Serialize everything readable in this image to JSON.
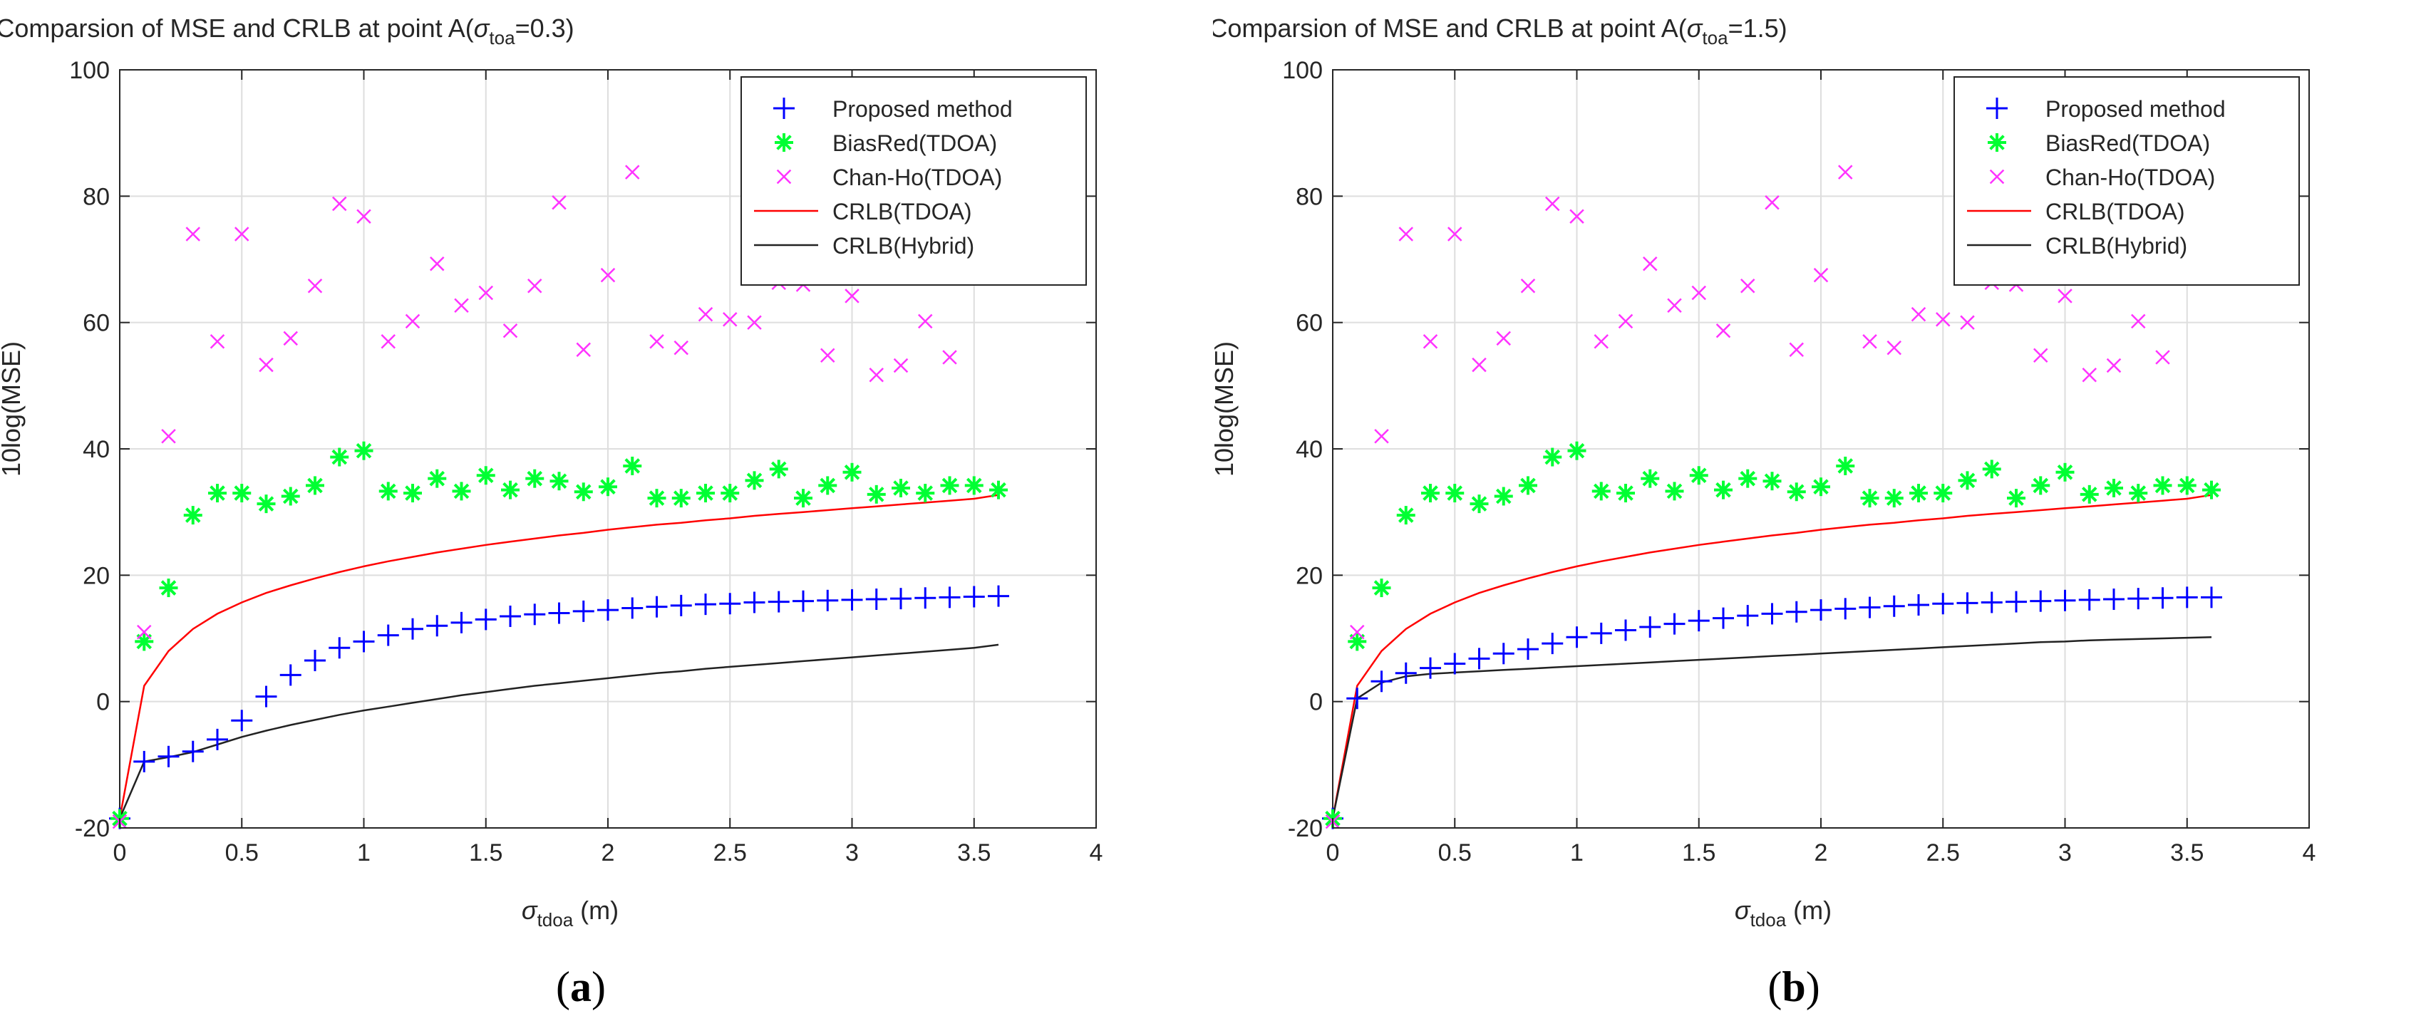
{
  "chart_data": [
    {
      "type": "scatter",
      "panel_label": "(a)",
      "panel_letter": "a",
      "title": "Comparsion of MSE and CRLB at point A(σtoa=0.3)",
      "title_prefix": "Comparsion of MSE and CRLB at point A(",
      "title_sigma": "σ",
      "title_sub": "toa",
      "title_suffix": "=0.3)",
      "xlabel": "σtdoa (m)",
      "xlabel_sigma": "σ",
      "xlabel_sub": "tdoa",
      "xlabel_suffix": " (m)",
      "ylabel": "10log(MSE)",
      "xlim": [
        0,
        4
      ],
      "ylim": [
        -20,
        100
      ],
      "xticks": [
        0,
        0.5,
        1,
        1.5,
        2,
        2.5,
        3,
        3.5,
        4
      ],
      "xtick_labels": [
        "0",
        "0.5",
        "1",
        "1.5",
        "2",
        "2.5",
        "3",
        "3.5",
        "4"
      ],
      "yticks": [
        -20,
        0,
        20,
        40,
        60,
        80,
        100
      ],
      "ytick_labels": [
        "-20",
        "0",
        "20",
        "40",
        "60",
        "80",
        "100"
      ],
      "grid": true,
      "legend_position": "top-right",
      "x": [
        0,
        0.1,
        0.2,
        0.3,
        0.4,
        0.5,
        0.6,
        0.7,
        0.8,
        0.9,
        1.0,
        1.1,
        1.2,
        1.3,
        1.4,
        1.5,
        1.6,
        1.7,
        1.8,
        1.9,
        2.0,
        2.1,
        2.2,
        2.3,
        2.4,
        2.5,
        2.6,
        2.7,
        2.8,
        2.9,
        3.0,
        3.1,
        3.2,
        3.3,
        3.4,
        3.5,
        3.6
      ],
      "series": [
        {
          "name": "Proposed method",
          "kind": "plus",
          "color": "#0000ff",
          "values": [
            -18.5,
            -9.5,
            -8.7,
            -7.9,
            -6.0,
            -3.0,
            0.8,
            4.2,
            6.5,
            8.5,
            9.5,
            10.5,
            11.5,
            12.0,
            12.5,
            13.0,
            13.5,
            13.8,
            14.0,
            14.3,
            14.5,
            14.8,
            15.0,
            15.2,
            15.4,
            15.5,
            15.7,
            15.8,
            15.9,
            16.0,
            16.1,
            16.2,
            16.3,
            16.4,
            16.5,
            16.6,
            16.7
          ]
        },
        {
          "name": "BiasRed(TDOA)",
          "kind": "asterisk",
          "color": "#00ff33",
          "values": [
            -18.5,
            9.5,
            18.0,
            29.5,
            33.0,
            33.0,
            31.3,
            32.5,
            34.2,
            38.7,
            39.7,
            33.3,
            33.0,
            35.3,
            33.3,
            35.8,
            33.5,
            35.3,
            34.9,
            33.2,
            34.0,
            37.3,
            32.2,
            32.2,
            33.0,
            33.0,
            35.0,
            36.8,
            32.2,
            34.2,
            36.3,
            32.8,
            33.8,
            33.0,
            34.2,
            34.2,
            33.5
          ]
        },
        {
          "name": "Chan-Ho(TDOA)",
          "kind": "x",
          "color": "#ff33ff",
          "values": [
            -19.0,
            11.0,
            42.0,
            74.0,
            57.0,
            74.0,
            53.3,
            57.5,
            65.8,
            78.8,
            76.8,
            57.0,
            60.2,
            69.3,
            62.7,
            64.7,
            58.7,
            65.8,
            79.0,
            55.7,
            67.5,
            83.8,
            57.0,
            56.0,
            61.3,
            60.5,
            60.0,
            66.3,
            66.0,
            54.8,
            64.2,
            51.7,
            53.2,
            60.2,
            54.5,
            null,
            null
          ]
        },
        {
          "name": "CRLB(TDOA)",
          "kind": "line",
          "color": "#ff0000",
          "values": [
            -18.5,
            2.5,
            8.0,
            11.5,
            13.9,
            15.7,
            17.2,
            18.4,
            19.5,
            20.5,
            21.4,
            22.2,
            22.9,
            23.6,
            24.2,
            24.8,
            25.3,
            25.8,
            26.3,
            26.7,
            27.2,
            27.6,
            28.0,
            28.3,
            28.7,
            29.0,
            29.4,
            29.7,
            30.0,
            30.3,
            30.6,
            30.9,
            31.2,
            31.5,
            31.8,
            32.1,
            32.7
          ]
        },
        {
          "name": "CRLB(Hybrid)",
          "kind": "line",
          "color": "#222222",
          "values": [
            -18.5,
            -9.5,
            -8.8,
            -8.0,
            -6.8,
            -5.6,
            -4.6,
            -3.7,
            -2.9,
            -2.1,
            -1.4,
            -0.8,
            -0.2,
            0.4,
            1.0,
            1.5,
            2.0,
            2.5,
            2.9,
            3.3,
            3.7,
            4.1,
            4.5,
            4.8,
            5.2,
            5.5,
            5.8,
            6.1,
            6.4,
            6.7,
            7.0,
            7.3,
            7.6,
            7.9,
            8.2,
            8.5,
            9.0
          ]
        }
      ]
    },
    {
      "type": "scatter",
      "panel_label": "(b)",
      "panel_letter": "b",
      "title": "Comparsion of MSE and CRLB at point A(σtoa=1.5)",
      "title_prefix": "Comparsion of MSE and CRLB at point A(",
      "title_sigma": "σ",
      "title_sub": "toa",
      "title_suffix": "=1.5)",
      "xlabel": "σtdoa (m)",
      "xlabel_sigma": "σ",
      "xlabel_sub": "tdoa",
      "xlabel_suffix": " (m)",
      "ylabel": "10log(MSE)",
      "xlim": [
        0,
        4
      ],
      "ylim": [
        -20,
        100
      ],
      "xticks": [
        0,
        0.5,
        1,
        1.5,
        2,
        2.5,
        3,
        3.5,
        4
      ],
      "xtick_labels": [
        "0",
        "0.5",
        "1",
        "1.5",
        "2",
        "2.5",
        "3",
        "3.5",
        "4"
      ],
      "yticks": [
        -20,
        0,
        20,
        40,
        60,
        80,
        100
      ],
      "ytick_labels": [
        "-20",
        "0",
        "20",
        "40",
        "60",
        "80",
        "100"
      ],
      "grid": true,
      "legend_position": "top-right",
      "x": [
        0,
        0.1,
        0.2,
        0.3,
        0.4,
        0.5,
        0.6,
        0.7,
        0.8,
        0.9,
        1.0,
        1.1,
        1.2,
        1.3,
        1.4,
        1.5,
        1.6,
        1.7,
        1.8,
        1.9,
        2.0,
        2.1,
        2.2,
        2.3,
        2.4,
        2.5,
        2.6,
        2.7,
        2.8,
        2.9,
        3.0,
        3.1,
        3.2,
        3.3,
        3.4,
        3.5,
        3.6
      ],
      "series": [
        {
          "name": "Proposed method",
          "kind": "plus",
          "color": "#0000ff",
          "values": [
            -18.5,
            0.5,
            3.2,
            4.5,
            5.3,
            6.0,
            6.8,
            7.6,
            8.3,
            9.2,
            10.2,
            10.8,
            11.3,
            11.8,
            12.3,
            12.8,
            13.2,
            13.6,
            13.9,
            14.2,
            14.5,
            14.7,
            14.9,
            15.1,
            15.3,
            15.5,
            15.6,
            15.7,
            15.8,
            15.9,
            16.0,
            16.1,
            16.2,
            16.3,
            16.4,
            16.5,
            16.5
          ]
        },
        {
          "name": "BiasRed(TDOA)",
          "kind": "asterisk",
          "color": "#00ff33",
          "values": [
            -18.5,
            9.5,
            18.0,
            29.5,
            33.0,
            33.0,
            31.3,
            32.5,
            34.2,
            38.7,
            39.7,
            33.3,
            33.0,
            35.3,
            33.3,
            35.8,
            33.5,
            35.3,
            34.9,
            33.2,
            34.0,
            37.3,
            32.2,
            32.2,
            33.0,
            33.0,
            35.0,
            36.8,
            32.2,
            34.2,
            36.3,
            32.8,
            33.8,
            33.0,
            34.2,
            34.2,
            33.5
          ]
        },
        {
          "name": "Chan-Ho(TDOA)",
          "kind": "x",
          "color": "#ff33ff",
          "values": [
            -19.0,
            11.0,
            42.0,
            74.0,
            57.0,
            74.0,
            53.3,
            57.5,
            65.8,
            78.8,
            76.8,
            57.0,
            60.2,
            69.3,
            62.7,
            64.7,
            58.7,
            65.8,
            79.0,
            55.7,
            67.5,
            83.8,
            57.0,
            56.0,
            61.3,
            60.5,
            60.0,
            66.3,
            66.0,
            54.8,
            64.2,
            51.7,
            53.2,
            60.2,
            54.5,
            null,
            null
          ]
        },
        {
          "name": "CRLB(TDOA)",
          "kind": "line",
          "color": "#ff0000",
          "values": [
            -18.5,
            2.5,
            8.0,
            11.5,
            13.9,
            15.7,
            17.2,
            18.4,
            19.5,
            20.5,
            21.4,
            22.2,
            22.9,
            23.6,
            24.2,
            24.8,
            25.3,
            25.8,
            26.3,
            26.7,
            27.2,
            27.6,
            28.0,
            28.3,
            28.7,
            29.0,
            29.4,
            29.7,
            30.0,
            30.3,
            30.6,
            30.9,
            31.2,
            31.5,
            31.8,
            32.1,
            32.7
          ]
        },
        {
          "name": "CRLB(Hybrid)",
          "kind": "line",
          "color": "#222222",
          "values": [
            -18.5,
            0.5,
            3.0,
            4.0,
            4.4,
            4.6,
            4.8,
            5.0,
            5.2,
            5.4,
            5.6,
            5.8,
            6.0,
            6.2,
            6.4,
            6.6,
            6.8,
            7.0,
            7.2,
            7.4,
            7.6,
            7.8,
            8.0,
            8.2,
            8.4,
            8.6,
            8.8,
            9.0,
            9.2,
            9.4,
            9.5,
            9.7,
            9.8,
            9.9,
            10.0,
            10.1,
            10.2
          ]
        }
      ]
    }
  ]
}
